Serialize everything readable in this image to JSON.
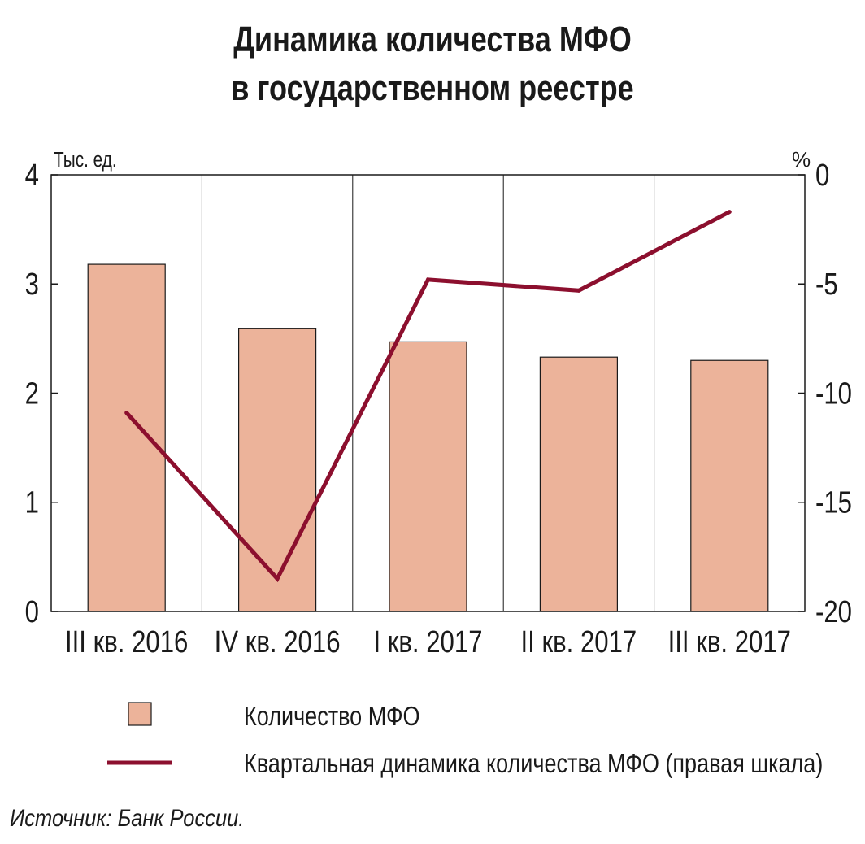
{
  "title_line1": "Динамика количества МФО",
  "title_line2": "в государственном реестре",
  "source": "Источник: Банк России.",
  "chart_data": {
    "type": "bar",
    "categories": [
      "III кв. 2016",
      "IV кв. 2016",
      "I кв. 2017",
      "II кв. 2017",
      "III кв. 2017"
    ],
    "series": [
      {
        "name": "Количество МФО",
        "type": "bar",
        "axis": "left",
        "color": "#ecb39a",
        "values": [
          3.18,
          2.59,
          2.47,
          2.33,
          2.3
        ]
      },
      {
        "name": "Квартальная динамика количества МФО (правая шкала)",
        "type": "line",
        "axis": "right",
        "color": "#8c0f2e",
        "values": [
          -10.9,
          -18.5,
          -4.8,
          -5.3,
          -1.7
        ]
      }
    ],
    "y_left": {
      "label": "Тыс. ед.",
      "min": 0,
      "max": 4,
      "ticks": [
        "0",
        "1",
        "2",
        "3",
        "4"
      ]
    },
    "y_right": {
      "label": "%",
      "min": -20,
      "max": 0,
      "ticks": [
        "-20",
        "-15",
        "-10",
        "-5",
        "0"
      ]
    },
    "grid": "vertical separators between categories",
    "legend_position": "bottom"
  }
}
